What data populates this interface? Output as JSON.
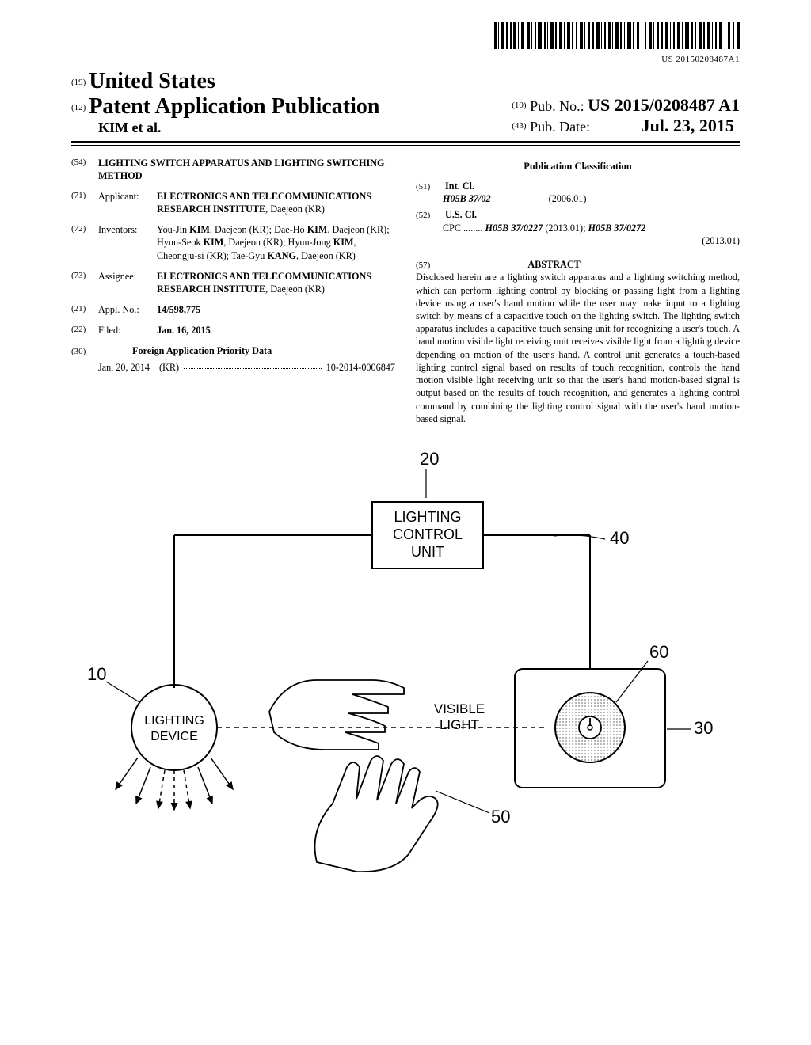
{
  "barcode_text": "US 20150208487A1",
  "header": {
    "code19": "(19)",
    "country": "United States",
    "code12": "(12)",
    "pubtype": "Patent Application Publication",
    "authors": "KIM et al.",
    "code10": "(10)",
    "pubno_label": "Pub. No.:",
    "pubno": "US 2015/0208487 A1",
    "code43": "(43)",
    "pubdate_label": "Pub. Date:",
    "pubdate": "Jul. 23, 2015"
  },
  "fields": {
    "f54": {
      "code": "(54)",
      "value": "LIGHTING SWITCH APPARATUS AND LIGHTING SWITCHING METHOD"
    },
    "f71": {
      "code": "(71)",
      "label": "Applicant:",
      "value": "ELECTRONICS AND TELECOMMUNICATIONS RESEARCH INSTITUTE",
      "loc": ", Daejeon (KR)"
    },
    "f72": {
      "code": "(72)",
      "label": "Inventors:",
      "value": "You-Jin KIM, Daejeon (KR); Dae-Ho KIM, Daejeon (KR); Hyun-Seok KIM, Daejeon (KR); Hyun-Jong KIM, Cheongju-si (KR); Tae-Gyu KANG, Daejeon (KR)"
    },
    "f73": {
      "code": "(73)",
      "label": "Assignee:",
      "value": "ELECTRONICS AND TELECOMMUNICATIONS RESEARCH INSTITUTE",
      "loc": ", Daejeon (KR)"
    },
    "f21": {
      "code": "(21)",
      "label": "Appl. No.:",
      "value": "14/598,775"
    },
    "f22": {
      "code": "(22)",
      "label": "Filed:",
      "value": "Jan. 16, 2015"
    },
    "f30": {
      "code": "(30)",
      "heading": "Foreign Application Priority Data"
    },
    "priority": {
      "date": "Jan. 20, 2014",
      "cc": "(KR)",
      "num": "10-2014-0006847"
    }
  },
  "classification": {
    "heading": "Publication Classification",
    "f51": {
      "code": "(51)",
      "label": "Int. Cl.",
      "cls": "H05B 37/02",
      "ver": "(2006.01)"
    },
    "f52": {
      "code": "(52)",
      "label": "U.S. Cl.",
      "cpc_prefix": "CPC ........",
      "cpc1": "H05B 37/0227",
      "v1": "(2013.01);",
      "cpc2": "H05B 37/0272",
      "v2": "(2013.01)"
    }
  },
  "abstract": {
    "code": "(57)",
    "heading": "ABSTRACT",
    "text": "Disclosed herein are a lighting switch apparatus and a lighting switching method, which can perform lighting control by blocking or passing light from a lighting device using a user's hand motion while the user may make input to a lighting switch by means of a capacitive touch on the lighting switch. The lighting switch apparatus includes a capacitive touch sensing unit for recognizing a user's touch. A hand motion visible light receiving unit receives visible light from a lighting device depending on motion of the user's hand. A control unit generates a touch-based lighting control signal based on results of touch recognition, controls the hand motion visible light receiving unit so that the user's hand motion-based signal is output based on the results of touch recognition, and generates a lighting control command by combining the lighting control signal with the user's hand motion-based signal."
  },
  "figure": {
    "box20": "LIGHTING\nCONTROL\nUNIT",
    "box30": "VISIBLE\nLIGHT",
    "circle10": "LIGHTING\nDEVICE",
    "ref10": "10",
    "ref20": "20",
    "ref30": "30",
    "ref40": "40",
    "ref50": "50",
    "ref60": "60"
  }
}
